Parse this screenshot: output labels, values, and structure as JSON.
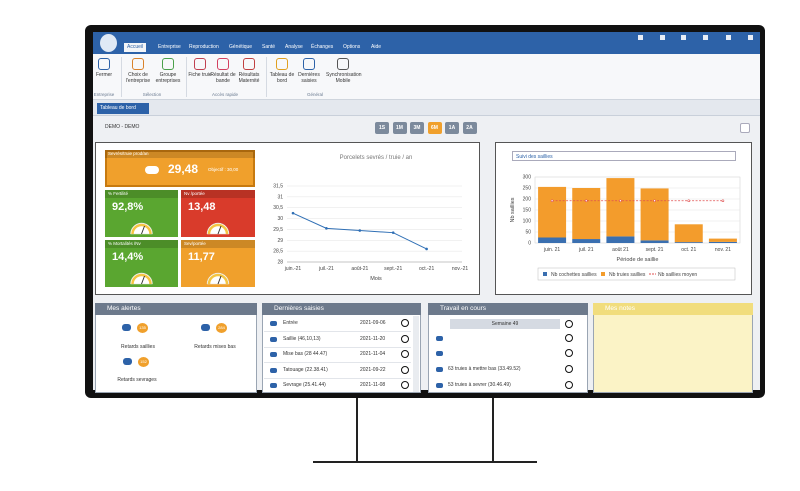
{
  "menu": [
    "Accueil",
    "Entreprise",
    "Reproduction",
    "Génétique",
    "Santé",
    "Analyse",
    "Échanges",
    "Options",
    "Aide"
  ],
  "active_menu": "Accueil",
  "ribbon": {
    "groups": [
      {
        "label": "Entreprise",
        "buttons": [
          "Fermer"
        ]
      },
      {
        "label": "Sélection",
        "buttons": [
          "Choix de l'entreprise",
          "Groupe entreprises"
        ]
      },
      {
        "label": "Accès rapide",
        "buttons": [
          "Fiche truie",
          "Résultat de bande",
          "Résultats Maternité"
        ]
      },
      {
        "label": "Général",
        "buttons": [
          "Tableau de bord",
          "Dernières saisies",
          "Synchronisation Mobile"
        ]
      }
    ]
  },
  "tab": "Tableau de bord",
  "farm": "DEMO - DEMO",
  "periods": [
    "1S",
    "1M",
    "3M",
    "6M",
    "1A",
    "2A"
  ],
  "active_period": "6M",
  "kpis": [
    {
      "label": "Sevrés/truie prod/an",
      "value": "29,48",
      "target": "Objectif : 30,00",
      "color": "#f0a02c"
    },
    {
      "label": "% Fertilité",
      "value": "92,8%",
      "color": "#5aa630"
    },
    {
      "label": "Nv /portée",
      "value": "13,48",
      "color": "#d93b2b"
    },
    {
      "label": "% Mortalités /Nv",
      "value": "14,4%",
      "color": "#5aa630"
    },
    {
      "label": "Sev/portée",
      "value": "11,77",
      "color": "#f0a02c"
    }
  ],
  "chart_selector": "Suivi des saillies",
  "chart_data": [
    {
      "type": "line",
      "title": "Porcelets sevrés / truie / an",
      "x_label": "Mois",
      "categories": [
        "juin.-21",
        "juil.-21",
        "août-21",
        "sept.-21",
        "oct.-21",
        "nov.-21"
      ],
      "values": [
        30.25,
        29.55,
        29.45,
        29.35,
        28.6,
        null
      ],
      "color": "#2f6fb5",
      "grid": true,
      "ylim": [
        28,
        31.5
      ],
      "yticks": [
        28,
        {
          "value": 28.5,
          "label": "28,5"
        },
        29,
        {
          "value": 29.5,
          "label": "29,5"
        },
        30,
        {
          "value": 30.5,
          "label": "30,5"
        },
        31,
        {
          "value": 31.5,
          "label": "31,5"
        }
      ]
    },
    {
      "type": "bar",
      "stacked": true,
      "x_label": "Période de saillie",
      "y_label": "Nb saillies",
      "legend": "bottom",
      "grid": true,
      "categories": [
        "juin. 21",
        "juil. 21",
        "août 21",
        "sept. 21",
        "oct. 21",
        "nov. 21"
      ],
      "series": [
        {
          "name": "Nb cochettes saillies",
          "color": "#3a6fb0",
          "values": [
            25,
            18,
            30,
            12,
            4,
            5
          ]
        },
        {
          "name": "Nb truies saillies",
          "color": "#f39c2c",
          "values": [
            230,
            232,
            265,
            236,
            81,
            15
          ]
        },
        {
          "name": "Nb saillies moyen",
          "color": "#e05050",
          "type": "line",
          "values": [
            192,
            192,
            192,
            192,
            192,
            192
          ]
        }
      ],
      "ylim": [
        0,
        300
      ],
      "yticks": [
        0,
        50,
        100,
        150,
        200,
        250,
        300
      ]
    }
  ],
  "alerts": {
    "title": "Mes alertes",
    "items": [
      {
        "label": "Retards saillies",
        "count": 135
      },
      {
        "label": "Retards mises bas",
        "count": 284
      },
      {
        "label": "Retards sevrages",
        "count": 152
      }
    ]
  },
  "recent": {
    "title": "Dernières saisies",
    "rows": [
      {
        "label": "Entrée",
        "date": "2021-09-06"
      },
      {
        "label": "Saillie (46,10,13)",
        "date": "2021-11-20"
      },
      {
        "label": "Mise bas (28 44.47)",
        "date": "2021-11-04"
      },
      {
        "label": "Tatouage (22.38.41)",
        "date": "2021-09-22"
      },
      {
        "label": "Sevrage (25.41.44)",
        "date": "2021-11-08"
      }
    ]
  },
  "work": {
    "title": "Travail en cours",
    "week": "Semaine 49",
    "rows": [
      "63 truies à mettre bas (33.49.52)",
      "53 truies à sevrer (30.46.49)"
    ]
  },
  "notes": {
    "title": "Mes notes"
  }
}
